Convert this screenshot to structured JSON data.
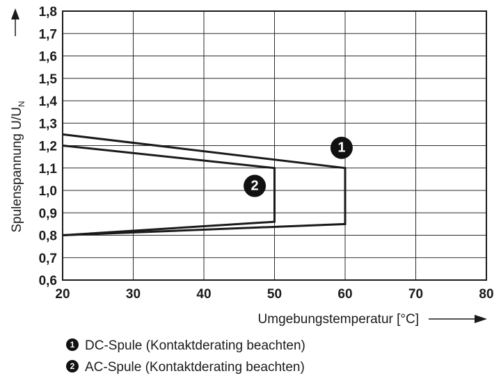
{
  "chart_data": {
    "type": "line",
    "xlabel": "Umgebungstemperatur [°C]",
    "ylabel_main": "Spulenspannung U/U",
    "ylabel_sub": "N",
    "xlim": [
      20,
      80
    ],
    "ylim": [
      0.6,
      1.8
    ],
    "x_ticks": [
      "20",
      "30",
      "40",
      "50",
      "60",
      "70",
      "80"
    ],
    "y_ticks": [
      "0,6",
      "0,7",
      "0,8",
      "0,9",
      "1,0",
      "1,1",
      "1,2",
      "1,3",
      "1,4",
      "1,5",
      "1,6",
      "1,7",
      "1,8"
    ],
    "grid": true,
    "series": [
      {
        "marker": "1",
        "points": [
          [
            20,
            1.25
          ],
          [
            60,
            1.1
          ],
          [
            60,
            0.85
          ],
          [
            20,
            0.8
          ]
        ]
      },
      {
        "marker": "2",
        "points": [
          [
            20,
            1.2
          ],
          [
            50,
            1.1
          ],
          [
            50,
            0.86
          ],
          [
            20,
            0.8
          ]
        ]
      }
    ],
    "legend": [
      {
        "marker": "1",
        "text": "DC-Spule (Kontaktderating beachten)"
      },
      {
        "marker": "2",
        "text": "AC-Spule (Kontaktderating beachten)"
      }
    ]
  }
}
